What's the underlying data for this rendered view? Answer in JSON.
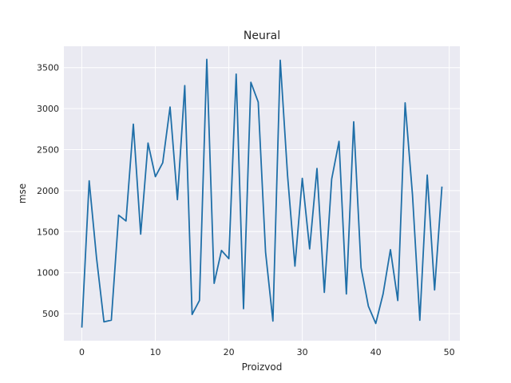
{
  "chart_data": {
    "type": "line",
    "title": "Neural",
    "xlabel": "Proizvod",
    "ylabel": "mse",
    "xlim": [
      -2.45,
      51.45
    ],
    "ylim": [
      170,
      3760
    ],
    "xticks": [
      0,
      10,
      20,
      30,
      40,
      50
    ],
    "yticks": [
      500,
      1000,
      1500,
      2000,
      2500,
      3000,
      3500
    ],
    "grid": true,
    "background": "#eaeaf2",
    "grid_color": "#ffffff",
    "series": [
      {
        "color": "#1f6fa8",
        "x": [
          0,
          1,
          2,
          3,
          4,
          5,
          6,
          7,
          8,
          9,
          10,
          11,
          12,
          13,
          14,
          15,
          16,
          17,
          18,
          19,
          20,
          21,
          22,
          23,
          24,
          25,
          26,
          27,
          28,
          29,
          30,
          31,
          32,
          33,
          34,
          35,
          36,
          37,
          38,
          39,
          40,
          41,
          42,
          43,
          44,
          45,
          46,
          47,
          48,
          49
        ],
        "values": [
          330,
          2120,
          1180,
          400,
          420,
          1700,
          1630,
          2810,
          1470,
          2580,
          2170,
          2340,
          3020,
          1890,
          3280,
          490,
          660,
          3600,
          870,
          1270,
          1170,
          3420,
          560,
          3320,
          3080,
          1250,
          410,
          3590,
          2180,
          1080,
          2150,
          1290,
          2270,
          760,
          2140,
          2600,
          740,
          2840,
          1060,
          590,
          380,
          740,
          1280,
          660,
          3070,
          1950,
          420,
          2190,
          790,
          2050
        ]
      }
    ]
  }
}
